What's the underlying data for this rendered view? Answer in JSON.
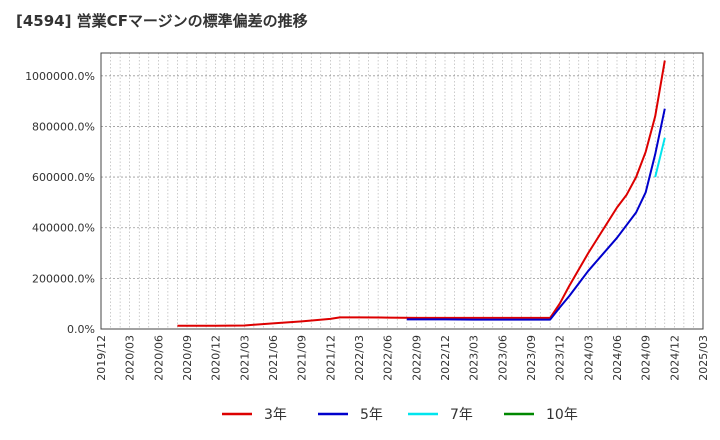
{
  "chart_data": {
    "type": "line",
    "title": "[4594]  営業CFマージンの標準偏差の推移",
    "xlabel": "",
    "ylabel": "",
    "ylim": [
      0,
      1090000
    ],
    "yticks": [
      0,
      200000,
      400000,
      600000,
      800000,
      1000000
    ],
    "ytick_labels": [
      "0.0%",
      "200000.0%",
      "400000.0%",
      "600000.0%",
      "800000.0%",
      "1000000.0%"
    ],
    "x_ticks": [
      "2019/12",
      "2020/03",
      "2020/06",
      "2020/09",
      "2020/12",
      "2021/03",
      "2021/06",
      "2021/09",
      "2021/12",
      "2022/03",
      "2022/06",
      "2022/09",
      "2022/12",
      "2023/03",
      "2023/06",
      "2023/09",
      "2023/12",
      "2024/03",
      "2024/06",
      "2024/09",
      "2024/12",
      "2025/03"
    ],
    "grid": true,
    "legend_position": "bottom",
    "series": [
      {
        "name": "3年",
        "color": "#dd0000",
        "points": [
          [
            "2020/08",
            13000
          ],
          [
            "2020/09",
            13000
          ],
          [
            "2020/12",
            13000
          ],
          [
            "2021/03",
            14000
          ],
          [
            "2021/04",
            17000
          ],
          [
            "2021/06",
            22000
          ],
          [
            "2021/09",
            30000
          ],
          [
            "2021/12",
            40000
          ],
          [
            "2022/01",
            46000
          ],
          [
            "2022/03",
            46000
          ],
          [
            "2022/06",
            45000
          ],
          [
            "2022/09",
            44000
          ],
          [
            "2022/12",
            44000
          ],
          [
            "2023/03",
            44000
          ],
          [
            "2023/06",
            44000
          ],
          [
            "2023/09",
            44000
          ],
          [
            "2023/11",
            44000
          ],
          [
            "2023/12",
            100000
          ],
          [
            "2024/01",
            170000
          ],
          [
            "2024/03",
            300000
          ],
          [
            "2024/06",
            480000
          ],
          [
            "2024/07",
            530000
          ],
          [
            "2024/08",
            600000
          ],
          [
            "2024/09",
            700000
          ],
          [
            "2024/10",
            840000
          ],
          [
            "2024/11",
            1060000
          ]
        ]
      },
      {
        "name": "5年",
        "color": "#0000cc",
        "points": [
          [
            "2022/08",
            38000
          ],
          [
            "2022/09",
            38000
          ],
          [
            "2022/12",
            38000
          ],
          [
            "2023/03",
            37000
          ],
          [
            "2023/06",
            37000
          ],
          [
            "2023/09",
            37000
          ],
          [
            "2023/11",
            37000
          ],
          [
            "2023/12",
            85000
          ],
          [
            "2024/01",
            130000
          ],
          [
            "2024/03",
            230000
          ],
          [
            "2024/06",
            360000
          ],
          [
            "2024/08",
            460000
          ],
          [
            "2024/09",
            540000
          ],
          [
            "2024/10",
            690000
          ],
          [
            "2024/11",
            870000
          ]
        ]
      },
      {
        "name": "7年",
        "color": "#00e5ee",
        "points": [
          [
            "2024/10",
            600000
          ],
          [
            "2024/11",
            755000
          ]
        ]
      },
      {
        "name": "10年",
        "color": "#008800",
        "points": []
      }
    ]
  }
}
